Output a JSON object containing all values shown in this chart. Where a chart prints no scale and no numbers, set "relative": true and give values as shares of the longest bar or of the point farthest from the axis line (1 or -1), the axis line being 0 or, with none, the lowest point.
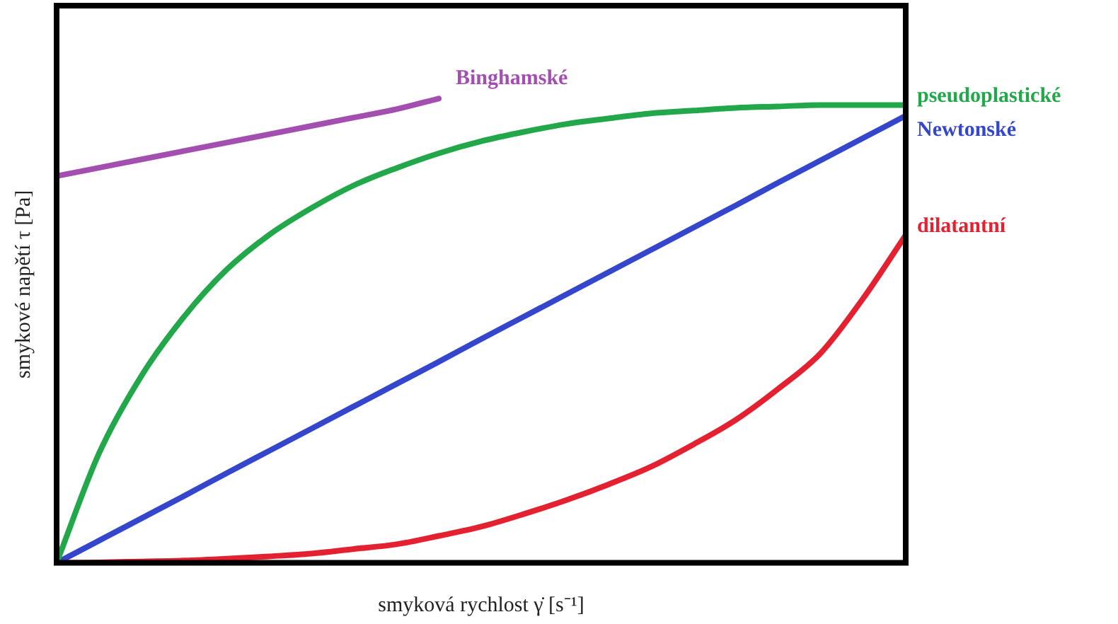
{
  "chart_data": {
    "type": "line",
    "relative": true,
    "xlabel": "smyková rychlost γ̇ [s⁻¹]",
    "ylabel": "smykové napětí τ [Pa]",
    "legend": false,
    "grid": false,
    "marker": "none",
    "categories": [
      null,
      null,
      null,
      null,
      null,
      null,
      null,
      null,
      null,
      null,
      null,
      null,
      null,
      null,
      null,
      null,
      null,
      null,
      null,
      null,
      null
    ],
    "series": [
      {
        "name": "Binghamské",
        "color": "#a24fb0",
        "values": [
          0.833,
          0.851,
          0.869,
          0.887,
          0.905,
          0.923,
          0.941,
          0.959,
          0.977,
          1.0,
          null,
          null,
          null,
          null,
          null,
          null,
          null,
          null,
          null,
          null,
          null
        ]
      },
      {
        "name": "pseudoplastické",
        "color": "#22a84a",
        "values": [
          0,
          0.236,
          0.403,
          0.53,
          0.631,
          0.706,
          0.764,
          0.813,
          0.85,
          0.882,
          0.908,
          0.928,
          0.945,
          0.957,
          0.968,
          0.974,
          0.98,
          0.983,
          0.986,
          0.986,
          0.986
        ]
      },
      {
        "name": "Newtonské",
        "color": "#3447cc",
        "values": [
          0,
          0.048,
          0.096,
          0.144,
          0.193,
          0.241,
          0.289,
          0.337,
          0.385,
          0.433,
          0.482,
          0.53,
          0.578,
          0.626,
          0.674,
          0.722,
          0.77,
          0.819,
          0.867,
          0.915,
          0.963
        ]
      },
      {
        "name": "dilatantní",
        "color": "#e42130",
        "values": [
          0,
          0.001,
          0.003,
          0.005,
          0.009,
          0.014,
          0.02,
          0.03,
          0.04,
          0.058,
          0.078,
          0.105,
          0.135,
          0.169,
          0.207,
          0.255,
          0.308,
          0.375,
          0.452,
          0.57,
          0.706
        ]
      }
    ]
  }
}
